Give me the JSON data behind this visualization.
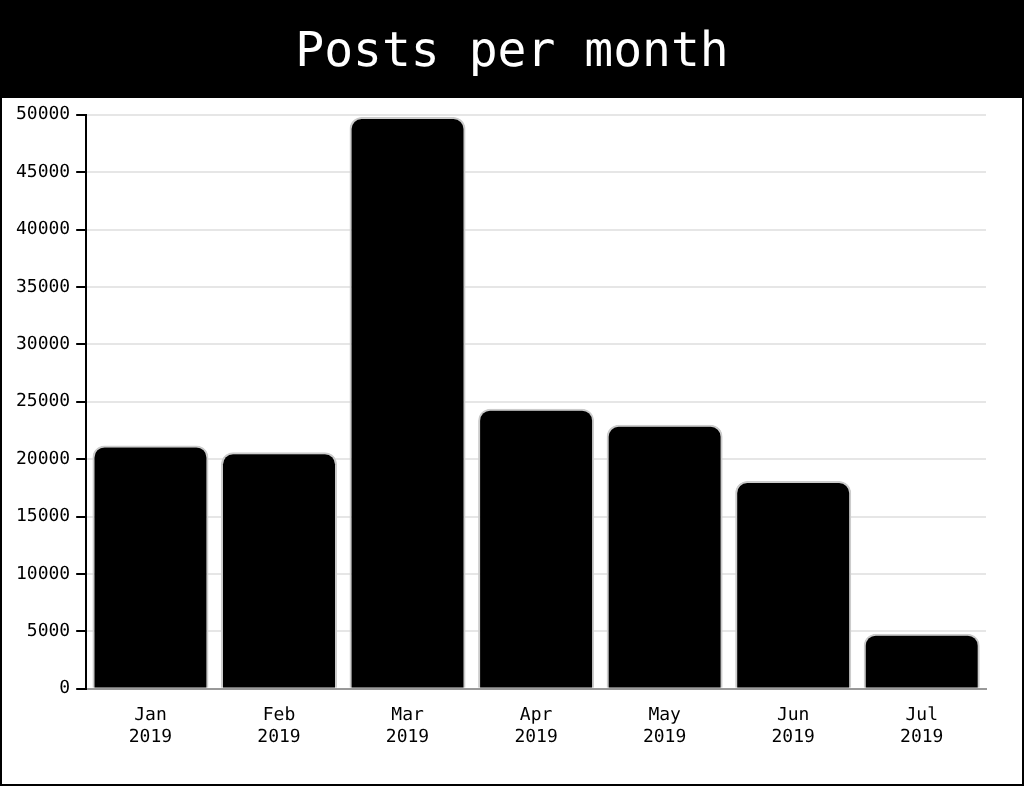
{
  "chart_data": {
    "type": "bar",
    "title": "Posts per month",
    "categories": [
      "Jan 2019",
      "Feb 2019",
      "Mar 2019",
      "Apr 2019",
      "May 2019",
      "Jun 2019",
      "Jul 2019"
    ],
    "values": [
      21200,
      20600,
      49800,
      24400,
      23000,
      18100,
      4800
    ],
    "color": "#000000",
    "ylim": [
      0,
      50000
    ],
    "yticks": [
      0,
      5000,
      10000,
      15000,
      20000,
      25000,
      30000,
      35000,
      40000,
      45000,
      50000
    ],
    "grid": "y",
    "legend": false
  }
}
